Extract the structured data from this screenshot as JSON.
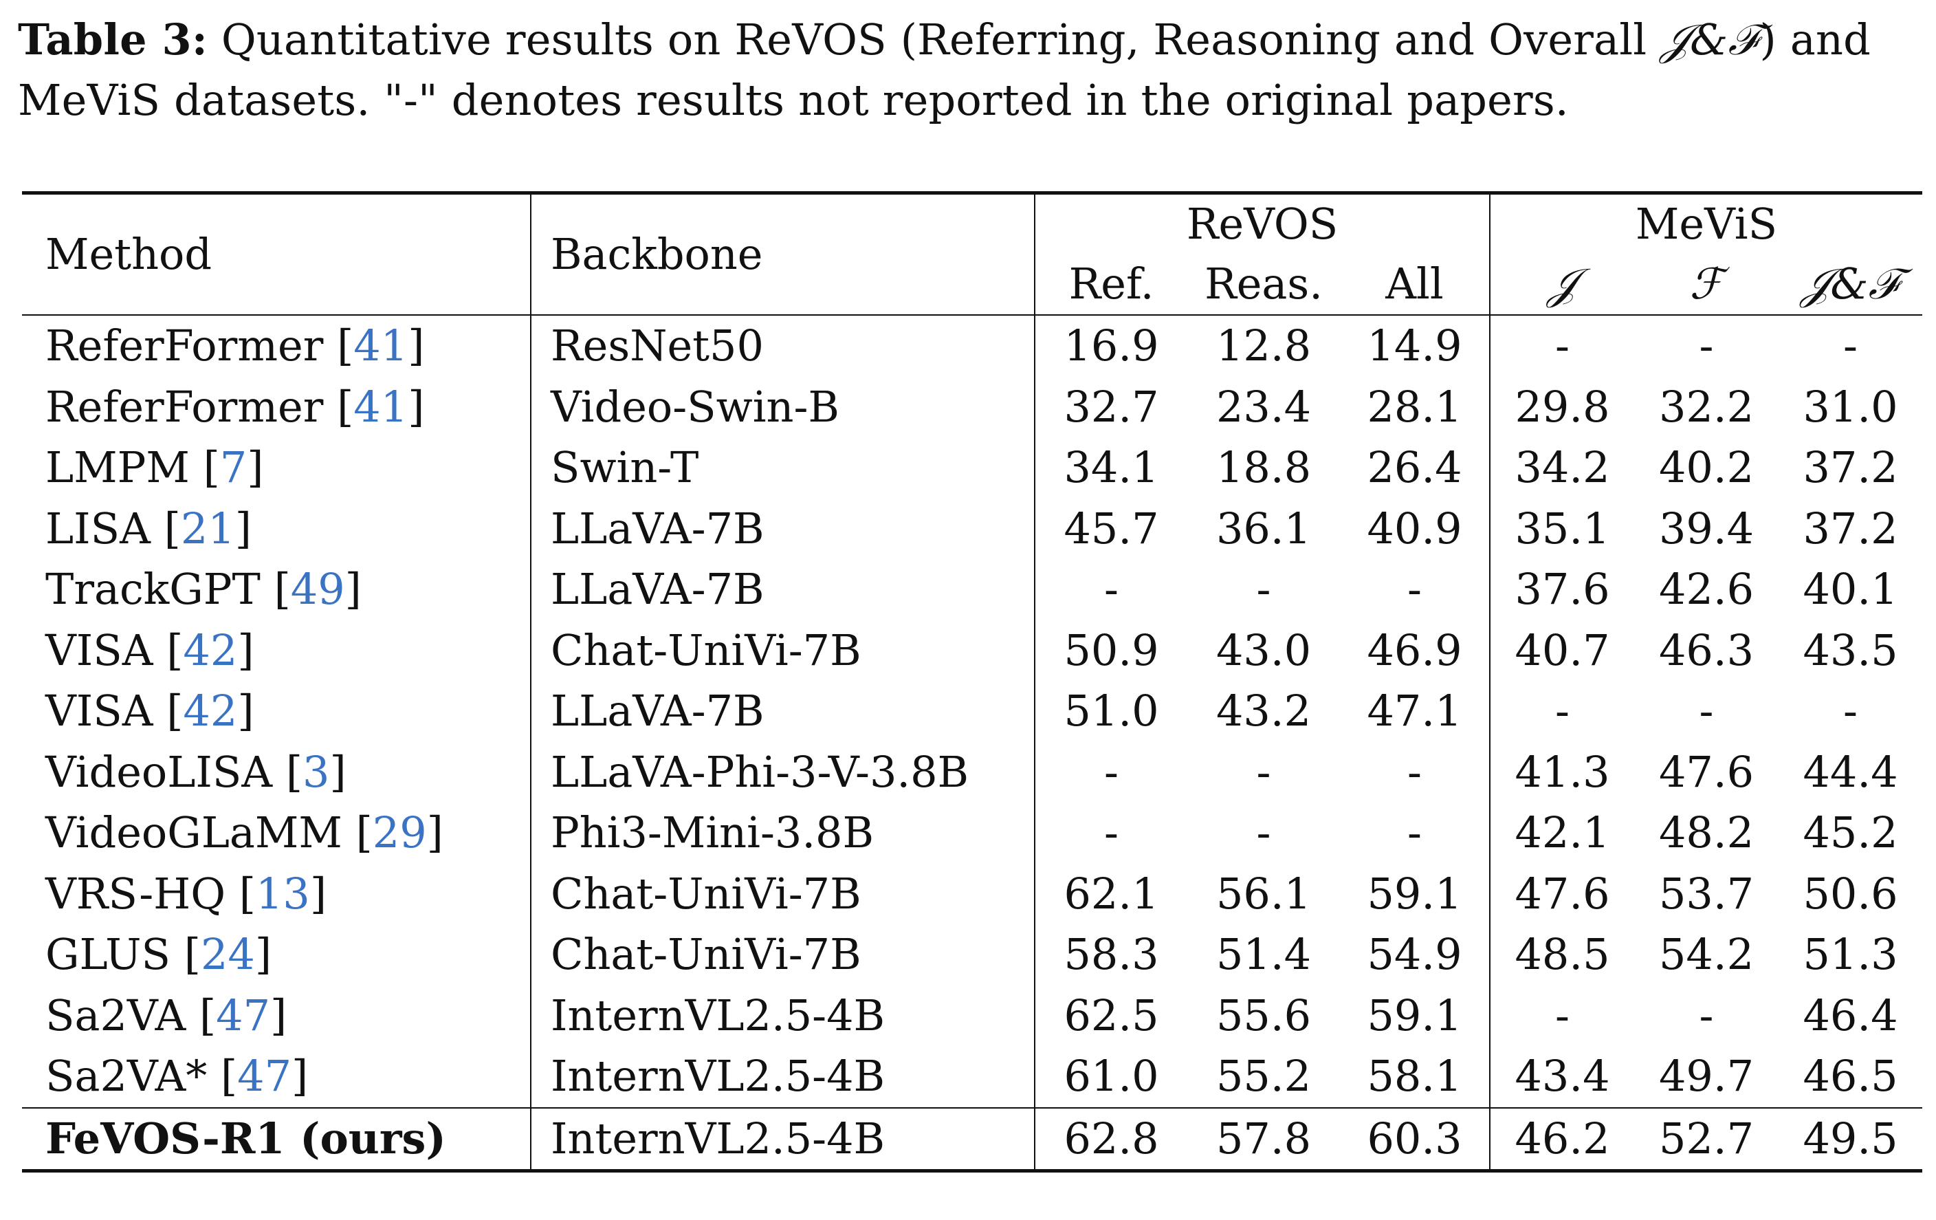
{
  "caption": {
    "label": "Table 3:",
    "text_before": " Quantitative results on ReVOS (Referring, Reasoning and Overall ",
    "metric": "𝒥&ℱ",
    "text_after": ") and MeViS datasets. \"-\" denotes results not reported in the original papers."
  },
  "table": {
    "headers": {
      "method": "Method",
      "backbone": "Backbone",
      "revos": "ReVOS",
      "mevis": "MeViS",
      "revos_cols": [
        "Ref.",
        "Reas.",
        "All"
      ],
      "mevis_cols": [
        "𝒥",
        "ℱ",
        "𝒥&ℱ"
      ]
    },
    "rows": [
      {
        "name": "ReferFormer",
        "cite": "41",
        "backbone": "ResNet50",
        "vals": [
          "16.9",
          "12.8",
          "14.9",
          "-",
          "-",
          "-"
        ],
        "bold": []
      },
      {
        "name": "ReferFormer",
        "cite": "41",
        "backbone": "Video-Swin-B",
        "vals": [
          "32.7",
          "23.4",
          "28.1",
          "29.8",
          "32.2",
          "31.0"
        ],
        "bold": []
      },
      {
        "name": "LMPM",
        "cite": "7",
        "backbone": "Swin-T",
        "vals": [
          "34.1",
          "18.8",
          "26.4",
          "34.2",
          "40.2",
          "37.2"
        ],
        "bold": []
      },
      {
        "name": "LISA",
        "cite": "21",
        "backbone": "LLaVA-7B",
        "vals": [
          "45.7",
          "36.1",
          "40.9",
          "35.1",
          "39.4",
          "37.2"
        ],
        "bold": []
      },
      {
        "name": "TrackGPT",
        "cite": "49",
        "backbone": "LLaVA-7B",
        "vals": [
          "-",
          "-",
          "-",
          "37.6",
          "42.6",
          "40.1"
        ],
        "bold": []
      },
      {
        "name": "VISA",
        "cite": "42",
        "backbone": "Chat-UniVi-7B",
        "vals": [
          "50.9",
          "43.0",
          "46.9",
          "40.7",
          "46.3",
          "43.5"
        ],
        "bold": []
      },
      {
        "name": "VISA",
        "cite": "42",
        "backbone": "LLaVA-7B",
        "vals": [
          "51.0",
          "43.2",
          "47.1",
          "-",
          "-",
          "-"
        ],
        "bold": []
      },
      {
        "name": "VideoLISA",
        "cite": "3",
        "backbone": "LLaVA-Phi-3-V-3.8B",
        "vals": [
          "-",
          "-",
          "-",
          "41.3",
          "47.6",
          "44.4"
        ],
        "bold": []
      },
      {
        "name": "VideoGLaMM",
        "cite": "29",
        "backbone": "Phi3-Mini-3.8B",
        "vals": [
          "-",
          "-",
          "-",
          "42.1",
          "48.2",
          "45.2"
        ],
        "bold": []
      },
      {
        "name": "VRS-HQ",
        "cite": "13",
        "backbone": "Chat-UniVi-7B",
        "vals": [
          "62.1",
          "56.1",
          "59.1",
          "47.6",
          "53.7",
          "50.6"
        ],
        "bold": []
      },
      {
        "name": "GLUS",
        "cite": "24",
        "backbone": "Chat-UniVi-7B",
        "vals": [
          "58.3",
          "51.4",
          "54.9",
          "48.5",
          "54.2",
          "51.3"
        ],
        "bold": [
          3,
          4,
          5
        ]
      },
      {
        "name": "Sa2VA",
        "cite": "47",
        "backbone": "InternVL2.5-4B",
        "vals": [
          "62.5",
          "55.6",
          "59.1",
          "-",
          "-",
          "46.4"
        ],
        "bold": []
      },
      {
        "name": "Sa2VA*",
        "cite": "47",
        "backbone": "InternVL2.5-4B",
        "vals": [
          "61.0",
          "55.2",
          "58.1",
          "43.4",
          "49.7",
          "46.5"
        ],
        "bold": []
      }
    ],
    "ours": {
      "name": "FeVOS-R1 (ours)",
      "backbone": "InternVL2.5-4B",
      "vals": [
        "62.8",
        "57.8",
        "60.3",
        "46.2",
        "52.7",
        "49.5"
      ],
      "bold": [
        0,
        1,
        2
      ]
    }
  }
}
